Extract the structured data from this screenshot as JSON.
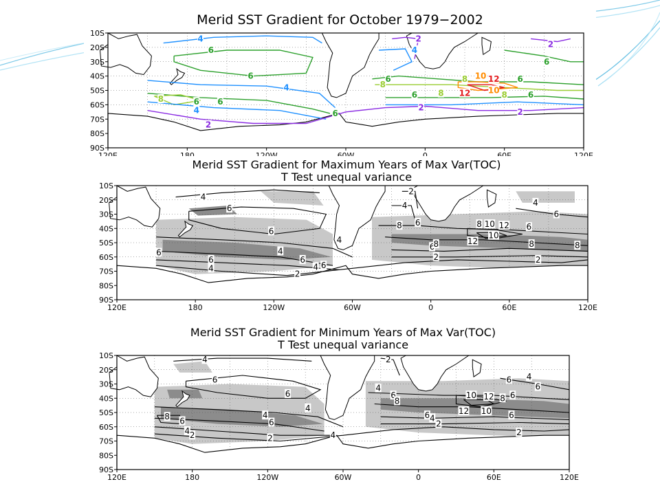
{
  "theme": {
    "swoosh_colors": [
      "#2aa7d8",
      "#7fd0ee",
      "#b9e6f6"
    ],
    "contour_colors": {
      "2": "#8a2be2",
      "4": "#1e90ff",
      "6": "#2ca02c",
      "8": "#9acd32",
      "10": "#ff8c00",
      "12": "#e41a1c"
    },
    "shade_light": "#c8c8c8",
    "shade_dark": "#8c8c8c"
  },
  "chart_data": [
    {
      "type": "heatmap",
      "title": "Merid SST Gradient for October 1979−2002",
      "subtitle": "",
      "x_ticks": [
        "120E",
        "180",
        "120W",
        "60W",
        "0",
        "60E",
        "120E"
      ],
      "y_ticks": [
        "10S",
        "20S",
        "30S",
        "40S",
        "50S",
        "60S",
        "70S",
        "80S",
        "90S"
      ],
      "xlim": [
        120,
        480
      ],
      "ylim": [
        -90,
        -10
      ],
      "grid": true,
      "contour_levels": [
        2,
        4,
        6,
        8,
        10,
        12
      ],
      "contour_labels": [
        {
          "text": "4",
          "lon": 190,
          "lat": -14
        },
        {
          "text": "6",
          "lon": 198,
          "lat": -22
        },
        {
          "text": "6",
          "lon": 228,
          "lat": -40
        },
        {
          "text": "4",
          "lon": 255,
          "lat": -48
        },
        {
          "text": "6",
          "lon": 205,
          "lat": -58
        },
        {
          "text": "4",
          "lon": 187,
          "lat": -64
        },
        {
          "text": "6",
          "lon": 187,
          "lat": -58
        },
        {
          "text": "8",
          "lon": 160,
          "lat": -56
        },
        {
          "text": "2",
          "lon": 196,
          "lat": -74
        },
        {
          "text": "6",
          "lon": 292,
          "lat": -66
        },
        {
          "text": "6",
          "lon": 332,
          "lat": -42
        },
        {
          "text": "8",
          "lon": 328,
          "lat": -46
        },
        {
          "text": "2",
          "lon": 355,
          "lat": -14
        },
        {
          "text": "4",
          "lon": 352,
          "lat": -22
        },
        {
          "text": "2",
          "lon": 357,
          "lat": -62
        },
        {
          "text": "6",
          "lon": 352,
          "lat": -53
        },
        {
          "text": "8",
          "lon": 372,
          "lat": -52
        },
        {
          "text": "8",
          "lon": 390,
          "lat": -42
        },
        {
          "text": "10",
          "lon": 402,
          "lat": -40
        },
        {
          "text": "12",
          "lon": 412,
          "lat": -42
        },
        {
          "text": "12",
          "lon": 390,
          "lat": -52
        },
        {
          "text": "10",
          "lon": 412,
          "lat": -50
        },
        {
          "text": "6",
          "lon": 432,
          "lat": -42
        },
        {
          "text": "6",
          "lon": 452,
          "lat": -30
        },
        {
          "text": "6",
          "lon": 440,
          "lat": -53
        },
        {
          "text": "8",
          "lon": 420,
          "lat": -53
        },
        {
          "text": "2",
          "lon": 432,
          "lat": -65
        },
        {
          "text": "2",
          "lon": 455,
          "lat": -18
        }
      ]
    },
    {
      "type": "heatmap",
      "title": "Merid SST Gradient for Maximum Years of Max Var(TOC)",
      "subtitle": "T Test unequal variance",
      "x_ticks": [
        "120E",
        "180",
        "120W",
        "60W",
        "0",
        "60E",
        "120E"
      ],
      "y_ticks": [
        "10S",
        "20S",
        "30S",
        "40S",
        "50S",
        "60S",
        "70S",
        "80S",
        "90S"
      ],
      "xlim": [
        120,
        480
      ],
      "ylim": [
        -90,
        -10
      ],
      "grid": true,
      "contour_levels": [
        2,
        4,
        6,
        8,
        10,
        12
      ],
      "contour_labels": [
        {
          "text": "4",
          "lon": 186,
          "lat": -18
        },
        {
          "text": "6",
          "lon": 206,
          "lat": -26
        },
        {
          "text": "6",
          "lon": 238,
          "lat": -42
        },
        {
          "text": "4",
          "lon": 290,
          "lat": -48
        },
        {
          "text": "6",
          "lon": 152,
          "lat": -57
        },
        {
          "text": "6",
          "lon": 192,
          "lat": -62
        },
        {
          "text": "4",
          "lon": 192,
          "lat": -68
        },
        {
          "text": "6",
          "lon": 262,
          "lat": -62
        },
        {
          "text": "4",
          "lon": 245,
          "lat": -56
        },
        {
          "text": "4",
          "lon": 272,
          "lat": -67
        },
        {
          "text": "6",
          "lon": 278,
          "lat": -66
        },
        {
          "text": "2",
          "lon": 258,
          "lat": -72
        },
        {
          "text": "2",
          "lon": 345,
          "lat": -14
        },
        {
          "text": "4",
          "lon": 340,
          "lat": -24
        },
        {
          "text": "8",
          "lon": 336,
          "lat": -38
        },
        {
          "text": "6",
          "lon": 350,
          "lat": -36
        },
        {
          "text": "6",
          "lon": 361,
          "lat": -53
        },
        {
          "text": "8",
          "lon": 364,
          "lat": -51
        },
        {
          "text": "2",
          "lon": 364,
          "lat": -60
        },
        {
          "text": "8",
          "lon": 397,
          "lat": -37
        },
        {
          "text": "10",
          "lon": 405,
          "lat": -37
        },
        {
          "text": "12",
          "lon": 416,
          "lat": -38
        },
        {
          "text": "12",
          "lon": 392,
          "lat": -49
        },
        {
          "text": "10",
          "lon": 408,
          "lat": -45
        },
        {
          "text": "6",
          "lon": 435,
          "lat": -39
        },
        {
          "text": "8",
          "lon": 437,
          "lat": -51
        },
        {
          "text": "8",
          "lon": 472,
          "lat": -52
        },
        {
          "text": "6",
          "lon": 456,
          "lat": -30
        },
        {
          "text": "4",
          "lon": 440,
          "lat": -22
        },
        {
          "text": "2",
          "lon": 442,
          "lat": -62
        }
      ]
    },
    {
      "type": "heatmap",
      "title": "Merid SST Gradient for Minimum Years of Max Var(TOC)",
      "subtitle": "T Test unequal variance",
      "x_ticks": [
        "120E",
        "180",
        "120W",
        "60W",
        "0",
        "60E",
        "120E"
      ],
      "y_ticks": [
        "10S",
        "20S",
        "30S",
        "40S",
        "50S",
        "60S",
        "70S",
        "80S",
        "90S"
      ],
      "xlim": [
        120,
        480
      ],
      "ylim": [
        -90,
        -10
      ],
      "grid": true,
      "contour_levels": [
        2,
        4,
        6,
        8,
        10,
        12
      ],
      "contour_labels": [
        {
          "text": "4",
          "lon": 190,
          "lat": -13
        },
        {
          "text": "6",
          "lon": 198,
          "lat": -27
        },
        {
          "text": "6",
          "lon": 256,
          "lat": -37
        },
        {
          "text": "4",
          "lon": 272,
          "lat": -47
        },
        {
          "text": "4",
          "lon": 238,
          "lat": -52
        },
        {
          "text": "6",
          "lon": 243,
          "lat": -57
        },
        {
          "text": "8",
          "lon": 160,
          "lat": -53
        },
        {
          "text": "6",
          "lon": 172,
          "lat": -56
        },
        {
          "text": "4",
          "lon": 176,
          "lat": -63
        },
        {
          "text": "2",
          "lon": 180,
          "lat": -66
        },
        {
          "text": "2",
          "lon": 242,
          "lat": -68
        },
        {
          "text": "4",
          "lon": 292,
          "lat": -66
        },
        {
          "text": "2",
          "lon": 336,
          "lat": -13
        },
        {
          "text": "4",
          "lon": 328,
          "lat": -33
        },
        {
          "text": "6",
          "lon": 340,
          "lat": -38
        },
        {
          "text": "8",
          "lon": 343,
          "lat": -42
        },
        {
          "text": "6",
          "lon": 367,
          "lat": -52
        },
        {
          "text": "4",
          "lon": 371,
          "lat": -54
        },
        {
          "text": "2",
          "lon": 376,
          "lat": -58
        },
        {
          "text": "10",
          "lon": 402,
          "lat": -38
        },
        {
          "text": "12",
          "lon": 416,
          "lat": -39
        },
        {
          "text": "8",
          "lon": 427,
          "lat": -40
        },
        {
          "text": "6",
          "lon": 435,
          "lat": -38
        },
        {
          "text": "12",
          "lon": 396,
          "lat": -49
        },
        {
          "text": "10",
          "lon": 414,
          "lat": -49
        },
        {
          "text": "6",
          "lon": 434,
          "lat": -52
        },
        {
          "text": "6",
          "lon": 432,
          "lat": -27
        },
        {
          "text": "6",
          "lon": 455,
          "lat": -32
        },
        {
          "text": "4",
          "lon": 448,
          "lat": -25
        },
        {
          "text": "2",
          "lon": 440,
          "lat": -64
        }
      ]
    }
  ]
}
